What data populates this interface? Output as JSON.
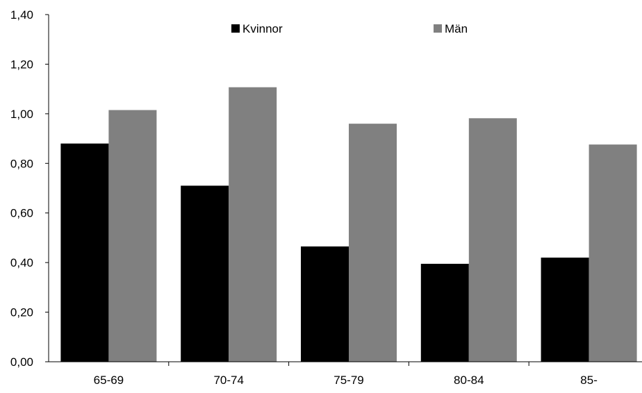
{
  "chart_data": {
    "type": "bar",
    "categories": [
      "65-69",
      "70-74",
      "75-79",
      "80-84",
      "85-"
    ],
    "series": [
      {
        "name": "Kvinnor",
        "color": "#000000",
        "values": [
          0.88,
          0.71,
          0.465,
          0.395,
          0.42
        ]
      },
      {
        "name": "Män",
        "color": "#808080",
        "values": [
          1.015,
          1.107,
          0.96,
          0.982,
          0.876
        ]
      }
    ],
    "y_ticks": [
      "0,00",
      "0,20",
      "0,40",
      "0,60",
      "0,80",
      "1,00",
      "1,20",
      "1,40"
    ],
    "ylim": [
      0,
      1.4
    ],
    "grid": false,
    "legend_position": "top-center"
  }
}
